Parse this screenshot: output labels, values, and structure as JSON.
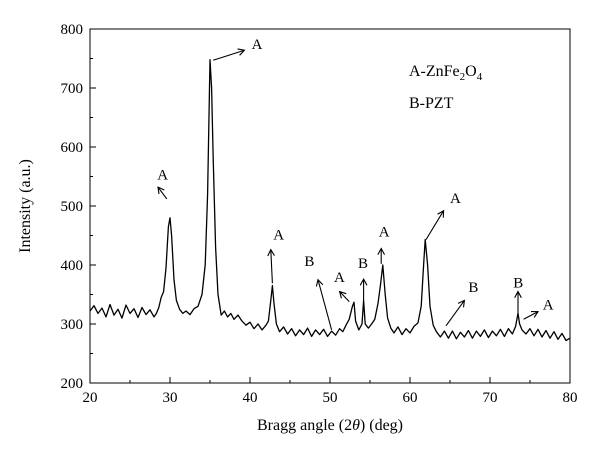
{
  "chart_data": {
    "type": "line",
    "xlabel_prefix": "Bragg angle (2",
    "xlabel_theta": "θ",
    "xlabel_suffix": ") (deg)",
    "ylabel": "Intensity (a.u.)",
    "xlim": [
      20,
      80
    ],
    "ylim": [
      200,
      800
    ],
    "xticks": [
      20,
      30,
      40,
      50,
      60,
      70,
      80
    ],
    "yticks": [
      200,
      300,
      400,
      500,
      600,
      700,
      800
    ],
    "grid": false,
    "legend": {
      "placement": "top-right",
      "entries": [
        {
          "parts": [
            "A-ZnFe",
            "2",
            "O",
            "4"
          ]
        },
        {
          "parts": [
            "B-PZT"
          ]
        }
      ]
    },
    "series": [
      {
        "color": "#000000",
        "points": [
          [
            20.0,
            322
          ],
          [
            20.5,
            331
          ],
          [
            21.0,
            318
          ],
          [
            21.5,
            327
          ],
          [
            22.0,
            312
          ],
          [
            22.5,
            333
          ],
          [
            23.0,
            315
          ],
          [
            23.5,
            325
          ],
          [
            24.0,
            310
          ],
          [
            24.5,
            332
          ],
          [
            25.0,
            318
          ],
          [
            25.5,
            326
          ],
          [
            26.0,
            311
          ],
          [
            26.5,
            328
          ],
          [
            27.0,
            316
          ],
          [
            27.5,
            324
          ],
          [
            28.0,
            312
          ],
          [
            28.3,
            318
          ],
          [
            28.6,
            328
          ],
          [
            28.9,
            345
          ],
          [
            29.2,
            355
          ],
          [
            29.5,
            395
          ],
          [
            29.8,
            465
          ],
          [
            30.0,
            480
          ],
          [
            30.2,
            450
          ],
          [
            30.5,
            375
          ],
          [
            30.8,
            340
          ],
          [
            31.2,
            325
          ],
          [
            31.6,
            318
          ],
          [
            32.0,
            322
          ],
          [
            32.5,
            316
          ],
          [
            33.0,
            326
          ],
          [
            33.5,
            330
          ],
          [
            34.0,
            350
          ],
          [
            34.4,
            400
          ],
          [
            34.7,
            520
          ],
          [
            35.0,
            748
          ],
          [
            35.2,
            700
          ],
          [
            35.4,
            580
          ],
          [
            35.7,
            430
          ],
          [
            36.0,
            350
          ],
          [
            36.4,
            315
          ],
          [
            36.8,
            322
          ],
          [
            37.2,
            312
          ],
          [
            37.6,
            318
          ],
          [
            38.0,
            308
          ],
          [
            38.5,
            315
          ],
          [
            39.0,
            305
          ],
          [
            39.5,
            298
          ],
          [
            40.0,
            303
          ],
          [
            40.5,
            292
          ],
          [
            41.0,
            300
          ],
          [
            41.5,
            290
          ],
          [
            42.0,
            298
          ],
          [
            42.3,
            305
          ],
          [
            42.6,
            340
          ],
          [
            42.8,
            365
          ],
          [
            43.0,
            335
          ],
          [
            43.3,
            300
          ],
          [
            43.7,
            287
          ],
          [
            44.2,
            295
          ],
          [
            44.7,
            283
          ],
          [
            45.2,
            292
          ],
          [
            45.7,
            280
          ],
          [
            46.2,
            290
          ],
          [
            46.7,
            282
          ],
          [
            47.2,
            293
          ],
          [
            47.7,
            279
          ],
          [
            48.2,
            290
          ],
          [
            48.7,
            282
          ],
          [
            49.2,
            291
          ],
          [
            49.7,
            279
          ],
          [
            50.2,
            288
          ],
          [
            50.7,
            281
          ],
          [
            51.2,
            292
          ],
          [
            51.6,
            287
          ],
          [
            52.0,
            298
          ],
          [
            52.4,
            308
          ],
          [
            52.8,
            330
          ],
          [
            53.0,
            337
          ],
          [
            53.2,
            305
          ],
          [
            53.6,
            290
          ],
          [
            54.0,
            300
          ],
          [
            54.2,
            340
          ],
          [
            54.4,
            300
          ],
          [
            54.8,
            293
          ],
          [
            55.2,
            300
          ],
          [
            55.6,
            308
          ],
          [
            56.0,
            335
          ],
          [
            56.3,
            365
          ],
          [
            56.6,
            400
          ],
          [
            56.9,
            350
          ],
          [
            57.2,
            310
          ],
          [
            57.6,
            293
          ],
          [
            58.0,
            285
          ],
          [
            58.5,
            295
          ],
          [
            59.0,
            282
          ],
          [
            59.5,
            292
          ],
          [
            60.0,
            285
          ],
          [
            60.5,
            296
          ],
          [
            61.0,
            302
          ],
          [
            61.4,
            330
          ],
          [
            61.7,
            400
          ],
          [
            61.9,
            443
          ],
          [
            62.2,
            400
          ],
          [
            62.5,
            330
          ],
          [
            62.9,
            298
          ],
          [
            63.3,
            287
          ],
          [
            63.8,
            278
          ],
          [
            64.3,
            288
          ],
          [
            64.8,
            276
          ],
          [
            65.3,
            288
          ],
          [
            65.8,
            275
          ],
          [
            66.3,
            286
          ],
          [
            66.8,
            278
          ],
          [
            67.3,
            289
          ],
          [
            67.8,
            276
          ],
          [
            68.3,
            288
          ],
          [
            68.8,
            279
          ],
          [
            69.3,
            290
          ],
          [
            69.8,
            277
          ],
          [
            70.3,
            288
          ],
          [
            70.8,
            280
          ],
          [
            71.3,
            291
          ],
          [
            71.8,
            279
          ],
          [
            72.3,
            292
          ],
          [
            72.8,
            283
          ],
          [
            73.2,
            296
          ],
          [
            73.5,
            318
          ],
          [
            73.7,
            300
          ],
          [
            74.0,
            290
          ],
          [
            74.5,
            283
          ],
          [
            75.0,
            292
          ],
          [
            75.5,
            280
          ],
          [
            76.0,
            291
          ],
          [
            76.5,
            278
          ],
          [
            77.0,
            289
          ],
          [
            77.5,
            276
          ],
          [
            78.0,
            287
          ],
          [
            78.5,
            274
          ],
          [
            79.0,
            284
          ],
          [
            79.5,
            272
          ],
          [
            80.0,
            276
          ]
        ]
      }
    ],
    "annotations": [
      {
        "label": "A",
        "arrow_from": [
          29.6,
          512
        ],
        "arrow_to": [
          28.5,
          532
        ],
        "label_at": [
          28.4,
          545
        ]
      },
      {
        "label": "A",
        "arrow_from": [
          35.4,
          747
        ],
        "arrow_to": [
          39.3,
          764
        ],
        "label_at": [
          40.2,
          766
        ]
      },
      {
        "label": "A",
        "arrow_from": [
          42.8,
          369
        ],
        "arrow_to": [
          42.6,
          426
        ],
        "label_at": [
          42.9,
          443
        ]
      },
      {
        "label": "B",
        "arrow_from": [
          50.2,
          290
        ],
        "arrow_to": [
          48.5,
          375
        ],
        "label_at": [
          46.8,
          398
        ]
      },
      {
        "label": "A",
        "arrow_from": [
          52.4,
          338
        ],
        "arrow_to": [
          51.2,
          355
        ],
        "label_at": [
          50.5,
          371
        ]
      },
      {
        "label": "B",
        "arrow_from": [
          54.2,
          340
        ],
        "arrow_to": [
          54.2,
          376
        ],
        "label_at": [
          53.5,
          395
        ]
      },
      {
        "label": "A",
        "arrow_from": [
          56.4,
          402
        ],
        "arrow_to": [
          56.4,
          428
        ],
        "label_at": [
          56.1,
          448
        ]
      },
      {
        "label": "A",
        "arrow_from": [
          62.0,
          443
        ],
        "arrow_to": [
          64.2,
          492
        ],
        "label_at": [
          65.0,
          505
        ]
      },
      {
        "label": "B",
        "arrow_from": [
          64.5,
          297
        ],
        "arrow_to": [
          66.8,
          340
        ],
        "label_at": [
          67.3,
          354
        ]
      },
      {
        "label": "B",
        "arrow_from": [
          73.5,
          318
        ],
        "arrow_to": [
          73.5,
          355
        ],
        "label_at": [
          72.9,
          362
        ]
      },
      {
        "label": "A",
        "arrow_from": [
          74.2,
          308
        ],
        "arrow_to": [
          76.0,
          321
        ],
        "label_at": [
          76.6,
          325
        ]
      }
    ]
  }
}
